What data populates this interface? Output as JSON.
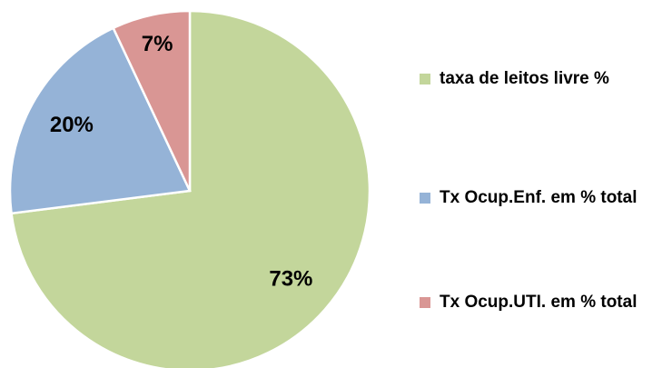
{
  "chart_data": {
    "type": "pie",
    "categories": [
      "taxa de leitos livre %",
      "Tx Ocup.Enf. em % total",
      "Tx Ocup.UTI. em % total"
    ],
    "values": [
      73,
      20,
      7
    ],
    "value_labels": [
      "73%",
      "20%",
      "7%"
    ],
    "colors": [
      "#c3d69b",
      "#95b3d7",
      "#d99694"
    ],
    "legend": "right"
  }
}
